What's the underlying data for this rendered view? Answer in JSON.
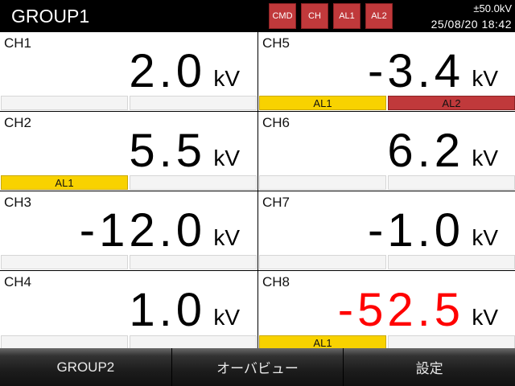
{
  "header": {
    "title": "GROUP1",
    "buttons": [
      "CMD",
      "CH",
      "AL1",
      "AL2"
    ],
    "range": "±50.0kV",
    "datetime": "25/08/20  18:42"
  },
  "colors": {
    "alarm1": "#f8d200",
    "alarm2": "#c0393b",
    "negative_alert": "#ff0000"
  },
  "channels": [
    {
      "name": "CH1",
      "value": "2.0",
      "unit": "kV",
      "al1": "",
      "al2": ""
    },
    {
      "name": "CH5",
      "value": "-3.4",
      "unit": "kV",
      "al1": "AL1",
      "al2": "AL2"
    },
    {
      "name": "CH2",
      "value": "5.5",
      "unit": "kV",
      "al1": "AL1",
      "al2": ""
    },
    {
      "name": "CH6",
      "value": "6.2",
      "unit": "kV",
      "al1": "",
      "al2": ""
    },
    {
      "name": "CH3",
      "value": "-12.0",
      "unit": "kV",
      "al1": "",
      "al2": ""
    },
    {
      "name": "CH7",
      "value": "-1.0",
      "unit": "kV",
      "al1": "",
      "al2": ""
    },
    {
      "name": "CH4",
      "value": "1.0",
      "unit": "kV",
      "al1": "",
      "al2": ""
    },
    {
      "name": "CH8",
      "value": "-52.5",
      "unit": "kV",
      "al1": "AL1",
      "al2": "",
      "value_color": "#ff0000"
    }
  ],
  "footer": {
    "buttons": [
      "GROUP2",
      "オーバビュー",
      "設定"
    ]
  }
}
